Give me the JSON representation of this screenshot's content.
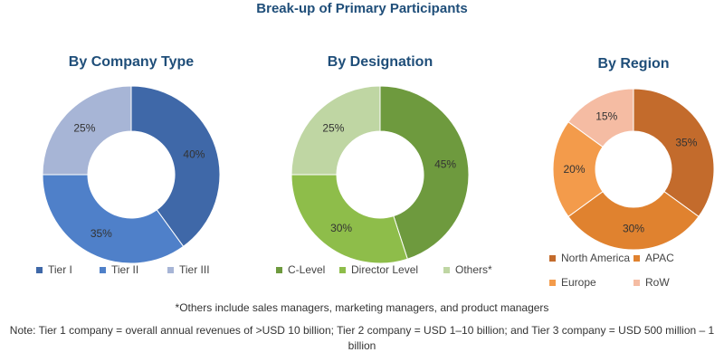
{
  "title": "Break-up of Primary Participants",
  "footnote": "*Others include sales managers, marketing managers, and product managers",
  "note": "Note: Tier 1 company = overall annual revenues of >USD 10 billion; Tier 2 company = USD 1–10 billion; and Tier 3 company = USD 500 million – 1 billion",
  "chart_data": [
    {
      "type": "pie",
      "title": "By Company Type",
      "categories": [
        "Tier I",
        "Tier II",
        "Tier III"
      ],
      "values": [
        40,
        35,
        25
      ],
      "value_labels": [
        "40%",
        "35%",
        "25%"
      ],
      "colors": [
        "#3f68a8",
        "#4f80c9",
        "#a7b5d6"
      ],
      "donut": true,
      "legend": "bottom"
    },
    {
      "type": "pie",
      "title": "By Designation",
      "categories": [
        "C-Level",
        "Director Level",
        "Others*"
      ],
      "values": [
        45,
        30,
        25
      ],
      "value_labels": [
        "45%",
        "30%",
        "25%"
      ],
      "colors": [
        "#6e9a3e",
        "#8ebd4a",
        "#bfd6a3"
      ],
      "donut": true,
      "legend": "bottom"
    },
    {
      "type": "pie",
      "title": "By Region",
      "categories": [
        "North America",
        "APAC",
        "Europe",
        "RoW"
      ],
      "values": [
        35,
        30,
        20,
        15
      ],
      "value_labels": [
        "35%",
        "30%",
        "20%",
        "15%"
      ],
      "colors": [
        "#c36b2c",
        "#e0822f",
        "#f39b4b",
        "#f5bca3"
      ],
      "donut": true,
      "legend": "bottom"
    }
  ]
}
